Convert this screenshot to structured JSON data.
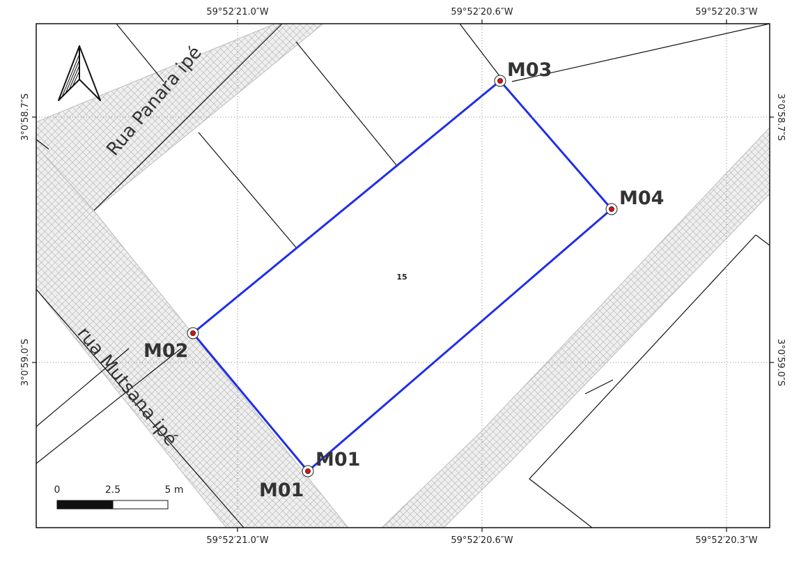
{
  "grid": {
    "top_labels": [
      "59°52′21.0″W",
      "59°52′20.6″W",
      "59°52′20.3″W"
    ],
    "bottom_labels": [
      "59°52′21.0″W",
      "59°52′20.6″W",
      "59°52′20.3″W"
    ],
    "left_labels": [
      "3°0′58.7″S",
      "3°0′59.0″S"
    ],
    "right_labels": [
      "3°0′58.7″S",
      "3°0′59.0″S"
    ]
  },
  "streets": {
    "north": "Rua Panara ipé",
    "west": "rua Mutsana ipé"
  },
  "lot_number": "15",
  "markers": {
    "m01": "M01",
    "m01_extra": "M01",
    "m02": "M02",
    "m03": "M03",
    "m04": "M04"
  },
  "scale_bar": {
    "labels": [
      "0",
      "2.5",
      "5 m"
    ]
  },
  "colors": {
    "boundary": "#1f2ee8",
    "marker_dot": "#e01010",
    "street_hatch": "#b5b5b5"
  },
  "icons": {
    "north_arrow": "north-arrow-icon"
  }
}
